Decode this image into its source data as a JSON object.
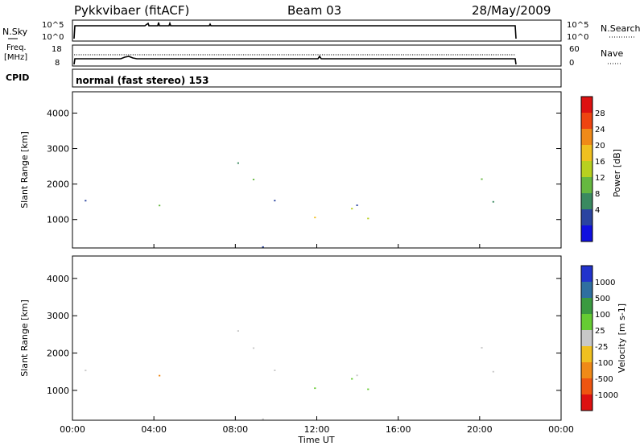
{
  "header": {
    "station": "Pykkvibaer (fitACF)",
    "beam": "Beam 03",
    "date": "28/May/2009"
  },
  "noise_panel": {
    "left_label": "N.Sky",
    "right_label": "N.Search",
    "left_ticks": [
      "10^5",
      "10^0"
    ],
    "right_ticks": [
      "10^5",
      "10^0"
    ]
  },
  "freq_panel": {
    "left_label_1": "Freq.",
    "left_label_2": "[MHz]",
    "right_label": "Nave",
    "left_ticks": [
      "18",
      "8"
    ],
    "right_ticks": [
      "60",
      "0"
    ]
  },
  "cpid": {
    "label": "CPID",
    "text": "normal (fast stereo) 153"
  },
  "x_axis": {
    "label": "Time UT",
    "ticks": [
      "00:00",
      "04:00",
      "08:00",
      "12:00",
      "16:00",
      "20:00",
      "00:00"
    ]
  },
  "chart_data": [
    {
      "type": "heatmap",
      "panel": "power",
      "ylabel": "Slant Range [km]",
      "yticks": [
        1000,
        2000,
        3000,
        4000
      ],
      "ylim": [
        200,
        4600
      ],
      "xlim_hours": [
        0,
        24
      ],
      "data_end_hour": 22,
      "colorbar": {
        "label": "Power [dB]",
        "ticks": [
          "28",
          "24",
          "20",
          "16",
          "12",
          "8",
          "4"
        ],
        "colors": [
          "#dd1111",
          "#ee4411",
          "#f08a18",
          "#f0c020",
          "#b8d020",
          "#66b840",
          "#3a8a60",
          "#2a44a0",
          "#1010e0"
        ]
      }
    },
    {
      "type": "heatmap",
      "panel": "velocity",
      "ylabel": "Slant Range [km]",
      "yticks": [
        1000,
        2000,
        3000,
        4000
      ],
      "ylim": [
        200,
        4600
      ],
      "xlim_hours": [
        0,
        24
      ],
      "data_end_hour": 22,
      "colorbar": {
        "label": "Velocity [m s-1]",
        "ticks": [
          "1000",
          "500",
          "100",
          "25",
          "-25",
          "-100",
          "-500",
          "-1000"
        ],
        "colors": [
          "#2233cc",
          "#2f6fa0",
          "#3a9a40",
          "#66cc33",
          "#c8c8c8",
          "#f0c020",
          "#f08a18",
          "#ee5511",
          "#dd1111"
        ]
      }
    }
  ]
}
